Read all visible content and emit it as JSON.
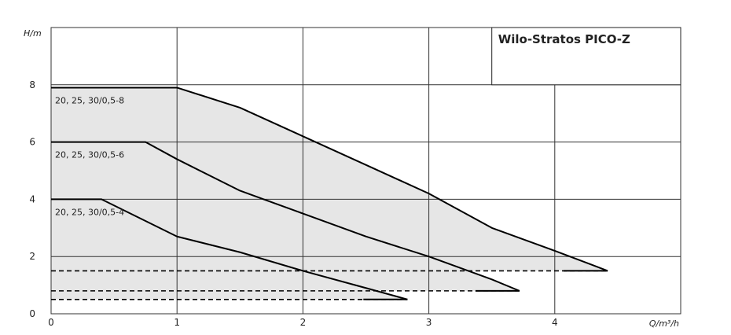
{
  "chart_data": {
    "type": "line",
    "title": "Wilo-Stratos PICO-Z",
    "xlabel": "Q/m³/h",
    "ylabel": "H/m",
    "xlim": [
      0,
      5
    ],
    "ylim": [
      0,
      10
    ],
    "x_ticks": [
      "0",
      "1",
      "2",
      "3",
      "4"
    ],
    "y_ticks": [
      "0",
      "2",
      "4",
      "6",
      "8"
    ],
    "grid": true,
    "colors": {
      "curve": "#000000",
      "fill": "#e6e6e6",
      "grid": "#333333"
    },
    "series": [
      {
        "name": "20, 25, 30/0,5-8",
        "max_curve": [
          [
            0,
            7.9
          ],
          [
            1,
            7.9
          ],
          [
            1.5,
            7.2
          ],
          [
            2,
            6.2
          ],
          [
            2.5,
            5.2
          ],
          [
            3,
            4.2
          ],
          [
            3.5,
            3.0
          ],
          [
            4,
            2.2
          ],
          [
            4.3,
            1.7
          ],
          [
            4.42,
            1.5
          ]
        ],
        "min_curve": [
          [
            0,
            1.5
          ],
          [
            4.42,
            1.5
          ]
        ]
      },
      {
        "name": "20, 25, 30/0,5-6",
        "max_curve": [
          [
            0,
            6.0
          ],
          [
            0.75,
            6.0
          ],
          [
            1,
            5.4
          ],
          [
            1.5,
            4.3
          ],
          [
            2,
            3.5
          ],
          [
            2.5,
            2.7
          ],
          [
            3,
            2.0
          ],
          [
            3.5,
            1.2
          ],
          [
            3.72,
            0.8
          ]
        ],
        "min_curve": [
          [
            0,
            0.8
          ],
          [
            3.72,
            0.8
          ]
        ]
      },
      {
        "name": "20, 25, 30/0,5-4",
        "max_curve": [
          [
            0,
            4.0
          ],
          [
            0.4,
            4.0
          ],
          [
            1,
            2.7
          ],
          [
            1.5,
            2.15
          ],
          [
            2,
            1.5
          ],
          [
            2.5,
            0.9
          ],
          [
            2.83,
            0.5
          ]
        ],
        "min_curve": [
          [
            0,
            0.5
          ],
          [
            2.83,
            0.5
          ]
        ]
      }
    ]
  }
}
